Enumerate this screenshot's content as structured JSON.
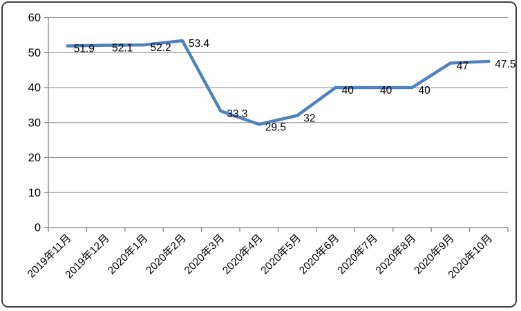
{
  "chart_data": {
    "type": "line",
    "title": "",
    "categories": [
      "2019年11月",
      "2019年12月",
      "2020年1月",
      "2020年2月",
      "2020年3月",
      "2020年4月",
      "2020年5月",
      "2020年6月",
      "2020年7月",
      "2020年8月",
      "2020年9月",
      "2020年10月"
    ],
    "series": [
      {
        "name": "",
        "values": [
          51.9,
          52.1,
          52.2,
          53.4,
          33.3,
          29.5,
          32,
          40,
          40,
          40,
          47,
          47.5
        ],
        "data_labels": [
          "51.9",
          "52.1",
          "52.2",
          "53.4",
          "33.3",
          "29.5",
          "32",
          "40",
          "40",
          "40",
          "47",
          "47.5"
        ]
      }
    ],
    "xlabel": "",
    "ylabel": "",
    "ylim": [
      0,
      60
    ],
    "ytick_interval": 10,
    "ytick_labels": [
      "0",
      "10",
      "20",
      "30",
      "40",
      "50",
      "60"
    ],
    "grid": "horizontal",
    "legend_position": "none",
    "x_label_rotation_deg": 45,
    "colors": {
      "line": "#4F81BD",
      "gridline": "#8a8a8a",
      "axis": "#7f7f7f",
      "text": "#000000",
      "frame_border": "#3f3f3f",
      "background": "#ffffff"
    }
  }
}
